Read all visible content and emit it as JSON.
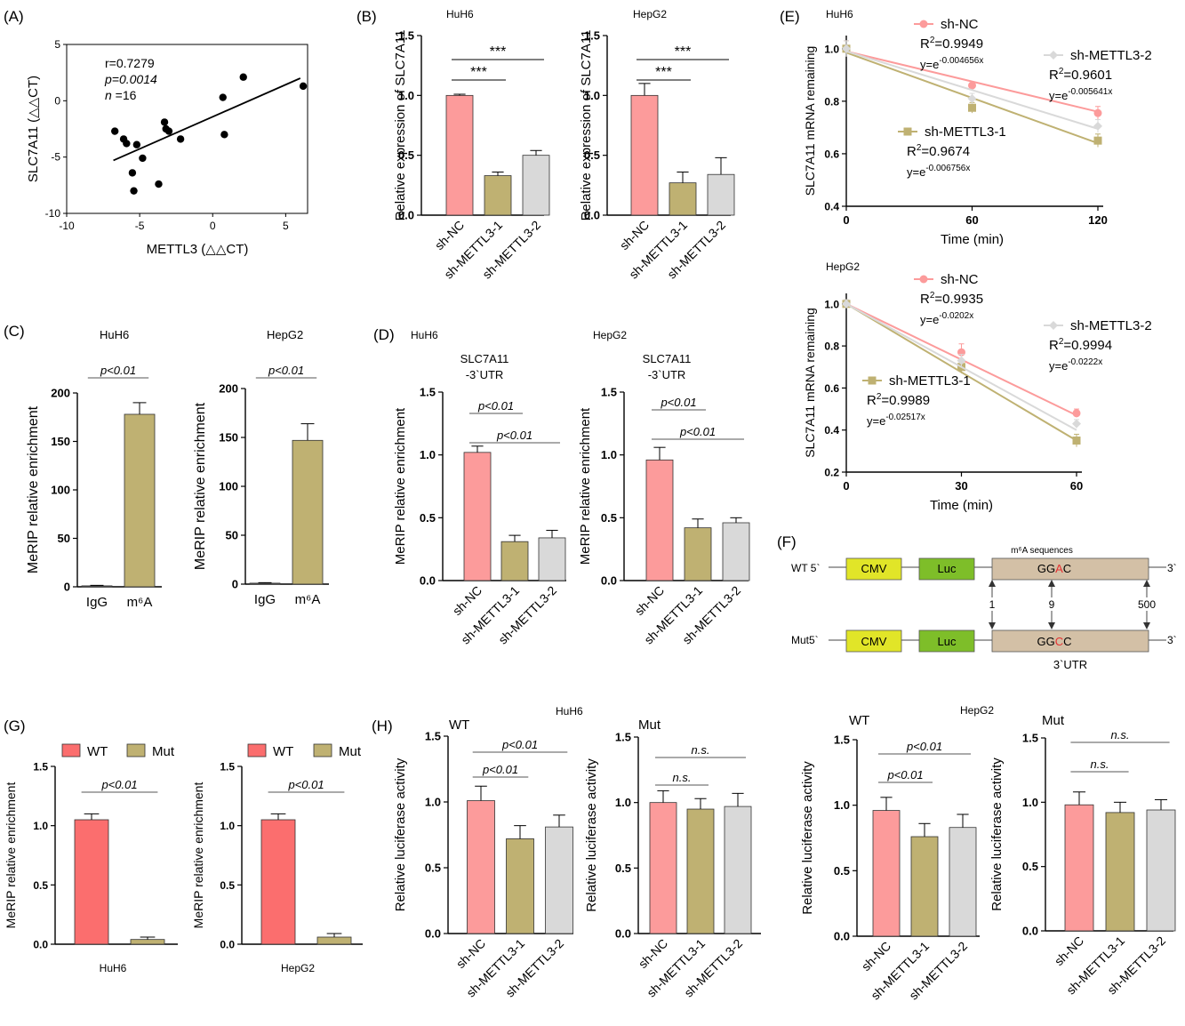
{
  "colors": {
    "nc": "#FC9B9B",
    "m1": "#BFB172",
    "m2": "#D9D9D9",
    "wt": "#FB6E6E",
    "mut": "#BFB172",
    "m6a": "#BFB172",
    "igg": "#777777",
    "cmv": "#E1E528",
    "luc": "#7EBE29",
    "utr": "#D3C0A6",
    "mutation": "#E53030"
  },
  "panels": [
    {
      "letter": "(A)"
    },
    {
      "letter": "(B)",
      "cell_lines": [
        "HuH6",
        "HepG2"
      ]
    },
    {
      "letter": "(C)",
      "cell_lines": [
        "HuH6",
        "HepG2"
      ]
    },
    {
      "letter": "(D)",
      "cell_lines": [
        "HuH6",
        "HepG2"
      ],
      "region_label_1": "SLC7A11",
      "region_label_2": "-3`UTR"
    },
    {
      "letter": "(E)",
      "cell_lines": [
        "HuH6",
        "HepG2"
      ]
    },
    {
      "letter": "(F)"
    },
    {
      "letter": "(G)"
    },
    {
      "letter": "(H)",
      "cell_lines": [
        "HuH6",
        "HepG2"
      ],
      "construct_labels": [
        "WT",
        "Mut"
      ]
    }
  ],
  "diagram": {
    "rows": [
      {
        "prefix": "WT 5`",
        "cmv": "CMV",
        "luc": "Luc",
        "seq": [
          "GG",
          "A",
          "C"
        ],
        "suffix": "3`"
      },
      {
        "prefix": "Mut5`",
        "cmv": "CMV",
        "luc": "Luc",
        "seq": [
          "GG",
          "C",
          "C"
        ],
        "suffix": "3`"
      }
    ],
    "header": "m⁶A sequences",
    "positions": [
      "1",
      "9",
      "500"
    ],
    "utr_label": "3`UTR"
  },
  "chart_data": [
    {
      "panel": "A",
      "type": "scatter",
      "xlabel": "METTL3 (△△CT)",
      "ylabel": "SLC7A11 (△△CT)",
      "xlim": [
        -10,
        6.5
      ],
      "ylim": [
        -10,
        5
      ],
      "xticks": [
        "-10",
        "-5",
        "0",
        "5"
      ],
      "yticks": [
        "-10",
        "-5",
        "0",
        "5"
      ],
      "annotations": [
        "r=0.7279",
        "p=0.0014",
        "n",
        " =16"
      ],
      "points": [
        [
          -6.7,
          -2.7
        ],
        [
          -6.1,
          -3.4
        ],
        [
          -5.9,
          -3.8
        ],
        [
          -5.5,
          -6.4
        ],
        [
          -5.4,
          -8.0
        ],
        [
          -5.2,
          -3.9
        ],
        [
          -4.8,
          -5.1
        ],
        [
          -3.7,
          -7.4
        ],
        [
          -3.3,
          -1.9
        ],
        [
          -3.2,
          -2.5
        ],
        [
          -3.0,
          -2.7
        ],
        [
          -2.2,
          -3.4
        ],
        [
          0.7,
          0.3
        ],
        [
          0.8,
          -3.0
        ],
        [
          2.1,
          2.1
        ],
        [
          6.2,
          1.3
        ]
      ],
      "fit": [
        [
          -6.8,
          -5.3
        ],
        [
          6.0,
          2.0
        ]
      ]
    },
    {
      "panel": "B-HuH6",
      "type": "bar",
      "ylabel": "Relative expression of SLC7A11",
      "categories": [
        "sh-NC",
        "sh-METTL3-1",
        "sh-METTL3-2"
      ],
      "values": [
        1.0,
        0.33,
        0.5
      ],
      "errors": [
        0.01,
        0.03,
        0.04
      ],
      "ylim": [
        0,
        1.5
      ],
      "yticks": [
        "0.0",
        "0.5",
        "1.0",
        "1.5"
      ],
      "sig": [
        {
          "from": 0,
          "to": 1,
          "label": "***"
        },
        {
          "from": 0,
          "to": 2,
          "label": "***"
        }
      ]
    },
    {
      "panel": "B-HepG2",
      "type": "bar",
      "ylabel": "Relative expression of SLC7A11",
      "categories": [
        "sh-NC",
        "sh-METTL3-1",
        "sh-METTL3-2"
      ],
      "values": [
        1.0,
        0.27,
        0.34
      ],
      "errors": [
        0.1,
        0.09,
        0.14
      ],
      "ylim": [
        0,
        1.5
      ],
      "yticks": [
        "0.0",
        "0.5",
        "1.0",
        "1.5"
      ],
      "sig": [
        {
          "from": 0,
          "to": 1,
          "label": "***"
        },
        {
          "from": 0,
          "to": 2,
          "label": "***"
        }
      ]
    },
    {
      "panel": "C-HuH6",
      "type": "bar",
      "ylabel": "MeRIP relative enrichment",
      "categories": [
        "IgG",
        "m⁶A"
      ],
      "values": [
        1,
        178
      ],
      "errors": [
        0.5,
        12
      ],
      "ylim": [
        0,
        200
      ],
      "yticks": [
        "0",
        "50",
        "100",
        "150",
        "200"
      ],
      "sig": [
        {
          "from": 0,
          "to": 1,
          "label": "p<0.01"
        }
      ]
    },
    {
      "panel": "C-HepG2",
      "type": "bar",
      "ylabel": "MeRIP relative enrichment",
      "categories": [
        "IgG",
        "m⁶A"
      ],
      "values": [
        1,
        147
      ],
      "errors": [
        0.5,
        17
      ],
      "ylim": [
        0,
        200
      ],
      "yticks": [
        "0",
        "50",
        "100",
        "150",
        "200"
      ],
      "sig": [
        {
          "from": 0,
          "to": 1,
          "label": "p<0.01"
        }
      ]
    },
    {
      "panel": "D-HuH6",
      "type": "bar",
      "ylabel": "MeRIP relative enrichment",
      "categories": [
        "sh-NC",
        "sh-METTL3-1",
        "sh-METTL3-2"
      ],
      "values": [
        1.02,
        0.31,
        0.34
      ],
      "errors": [
        0.05,
        0.05,
        0.06
      ],
      "ylim": [
        0,
        1.5
      ],
      "yticks": [
        "0.0",
        "0.5",
        "1.0",
        "1.5"
      ],
      "sig": [
        {
          "from": 0,
          "to": 1,
          "label": "p<0.01"
        },
        {
          "from": 0,
          "to": 2,
          "label": "p<0.01"
        }
      ]
    },
    {
      "panel": "D-HepG2",
      "type": "bar",
      "ylabel": "MeRIP relative enrichment",
      "categories": [
        "sh-NC",
        "sh-METTL3-1",
        "sh-METTL3-2"
      ],
      "values": [
        0.96,
        0.42,
        0.46
      ],
      "errors": [
        0.1,
        0.07,
        0.04
      ],
      "ylim": [
        0,
        1.5
      ],
      "yticks": [
        "0.0",
        "0.5",
        "1.0",
        "1.5"
      ],
      "sig": [
        {
          "from": 0,
          "to": 1,
          "label": "p<0.01"
        },
        {
          "from": 0,
          "to": 2,
          "label": "p<0.01"
        }
      ]
    },
    {
      "panel": "E-HuH6",
      "type": "line",
      "xlabel": "Time (min)",
      "ylabel": "SLC7A11 mRNA remaining",
      "xlim": [
        0,
        120
      ],
      "ylim": [
        0.4,
        1.05
      ],
      "xticks": [
        "0",
        "60",
        "120"
      ],
      "yticks": [
        "0.4",
        "0.6",
        "0.8",
        "1.0"
      ],
      "series": [
        {
          "name": "sh-NC",
          "x": [
            0,
            60,
            120
          ],
          "y": [
            1.0,
            0.86,
            0.755
          ],
          "err": [
            0.03,
            0.01,
            0.025
          ],
          "fit": [
            0.99,
            0.76
          ],
          "r2": "0.9949",
          "eq": "-0.004656x"
        },
        {
          "name": "sh-METTL3-1",
          "x": [
            0,
            60,
            120
          ],
          "y": [
            1.0,
            0.775,
            0.65
          ],
          "err": [
            0.03,
            0.02,
            0.025
          ],
          "fit": [
            0.985,
            0.64
          ],
          "r2": "0.9674",
          "eq": "-0.006756x"
        },
        {
          "name": "sh-METTL3-2",
          "x": [
            0,
            60,
            120
          ],
          "y": [
            1.0,
            0.81,
            0.705
          ],
          "err": [
            0.03,
            0.02,
            0.025
          ],
          "fit": [
            0.99,
            0.695
          ],
          "r2": "0.9601",
          "eq": "-0.005641x"
        }
      ]
    },
    {
      "panel": "E-HepG2",
      "type": "line",
      "xlabel": "Time (min)",
      "ylabel": "SLC7A11 mRNA remaining",
      "xlim": [
        0,
        60
      ],
      "ylim": [
        0.2,
        1.05
      ],
      "xticks": [
        "0",
        "30",
        "60"
      ],
      "yticks": [
        "0.2",
        "0.4",
        "0.6",
        "0.8",
        "1.0"
      ],
      "series": [
        {
          "name": "sh-NC",
          "x": [
            0,
            30,
            60
          ],
          "y": [
            1.0,
            0.77,
            0.48
          ],
          "err": [
            0.02,
            0.04,
            0.02
          ],
          "fit": [
            1.0,
            0.47
          ],
          "r2": "0.9935",
          "eq": "-0.0202x"
        },
        {
          "name": "sh-METTL3-1",
          "x": [
            0,
            30,
            60
          ],
          "y": [
            1.0,
            0.7,
            0.35
          ],
          "err": [
            0.02,
            0.03,
            0.03
          ],
          "fit": [
            1.0,
            0.35
          ],
          "r2": "0.9989",
          "eq": "-0.02517x"
        },
        {
          "name": "sh-METTL3-2",
          "x": [
            0,
            30,
            60
          ],
          "y": [
            1.0,
            0.73,
            0.43
          ],
          "err": [
            0.02,
            0.03,
            0.02
          ],
          "fit": [
            1.0,
            0.4
          ],
          "r2": "0.9994",
          "eq": "-0.0222x"
        }
      ]
    },
    {
      "panel": "G-HuH6",
      "type": "bar",
      "ylabel": "MeRIP relative enrichment",
      "xlabel": "HuH6",
      "categories": [
        "WT",
        "Mut"
      ],
      "legend": [
        "WT",
        "Mut"
      ],
      "values": [
        1.05,
        0.04
      ],
      "errors": [
        0.05,
        0.02
      ],
      "ylim": [
        0,
        1.5
      ],
      "yticks": [
        "0.0",
        "0.5",
        "1.0",
        "1.5"
      ],
      "sig": [
        {
          "from": 0,
          "to": 1,
          "label": "p<0.01"
        }
      ]
    },
    {
      "panel": "G-HepG2",
      "type": "bar",
      "ylabel": "MeRIP relative enrichment",
      "xlabel": "HepG2",
      "categories": [
        "WT",
        "Mut"
      ],
      "legend": [
        "WT",
        "Mut"
      ],
      "values": [
        1.05,
        0.06
      ],
      "errors": [
        0.05,
        0.03
      ],
      "ylim": [
        0,
        1.5
      ],
      "yticks": [
        "0.0",
        "0.5",
        "1.0",
        "1.5"
      ],
      "sig": [
        {
          "from": 0,
          "to": 1,
          "label": "p<0.01"
        }
      ]
    },
    {
      "panel": "H-HuH6-WT",
      "type": "bar",
      "ylabel": "Relative luciferase activity",
      "categories": [
        "sh-NC",
        "sh-METTL3-1",
        "sh-METTL3-2"
      ],
      "values": [
        1.01,
        0.72,
        0.81
      ],
      "errors": [
        0.11,
        0.1,
        0.09
      ],
      "ylim": [
        0,
        1.5
      ],
      "yticks": [
        "0.0",
        "0.5",
        "1.0",
        "1.5"
      ],
      "sig": [
        {
          "from": 0,
          "to": 1,
          "label": "p<0.01"
        },
        {
          "from": 0,
          "to": 2,
          "label": "p<0.01"
        }
      ]
    },
    {
      "panel": "H-HuH6-Mut",
      "type": "bar",
      "ylabel": "Relative luciferase activity",
      "categories": [
        "sh-NC",
        "sh-METTL3-1",
        "sh-METTL3-2"
      ],
      "values": [
        1.0,
        0.95,
        0.97
      ],
      "errors": [
        0.09,
        0.08,
        0.1
      ],
      "ylim": [
        0,
        1.5
      ],
      "yticks": [
        "0.0",
        "0.5",
        "1.0",
        "1.5"
      ],
      "sig": [
        {
          "from": 0,
          "to": 1,
          "label": "n.s."
        },
        {
          "from": 0,
          "to": 2,
          "label": "n.s."
        }
      ]
    },
    {
      "panel": "H-HepG2-WT",
      "type": "bar",
      "ylabel": "Relative luciferase activity",
      "categories": [
        "sh-NC",
        "sh-METTL3-1",
        "sh-METTL3-2"
      ],
      "values": [
        0.96,
        0.76,
        0.83
      ],
      "errors": [
        0.1,
        0.1,
        0.1
      ],
      "ylim": [
        0,
        1.5
      ],
      "yticks": [
        "0.0",
        "0.5",
        "1.0",
        "1.5"
      ],
      "sig": [
        {
          "from": 0,
          "to": 1,
          "label": "p<0.01"
        },
        {
          "from": 0,
          "to": 2,
          "label": "p<0.01"
        }
      ]
    },
    {
      "panel": "H-HepG2-Mut",
      "type": "bar",
      "ylabel": "Relative luciferase activity",
      "categories": [
        "sh-NC",
        "sh-METTL3-1",
        "sh-METTL3-2"
      ],
      "values": [
        0.98,
        0.92,
        0.94
      ],
      "errors": [
        0.1,
        0.08,
        0.08
      ],
      "ylim": [
        0,
        1.5
      ],
      "yticks": [
        "0.0",
        "0.5",
        "1.0",
        "1.5"
      ],
      "sig": [
        {
          "from": 0,
          "to": 1,
          "label": "n.s."
        },
        {
          "from": 0,
          "to": 2,
          "label": "n.s."
        }
      ]
    }
  ]
}
